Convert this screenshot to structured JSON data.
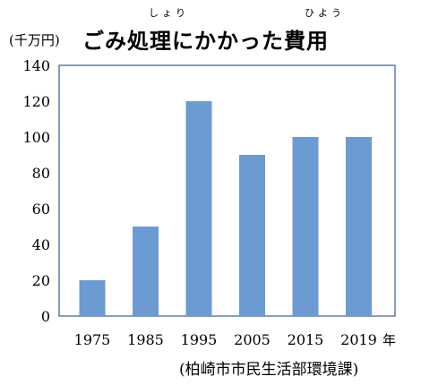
{
  "header": {
    "unit": "(千万円)",
    "title": "ごみ処理にかかった費用",
    "ruby_shori": "しょり",
    "ruby_hiyou": "ひよう"
  },
  "source": "(柏崎市市民生活部環境課)",
  "chart_data": {
    "type": "bar",
    "categories": [
      "1975",
      "1985",
      "1995",
      "2005",
      "2015",
      "2019"
    ],
    "values": [
      20,
      50,
      120,
      90,
      100,
      100
    ],
    "title": "ごみ処理にかかった費用",
    "xlabel": "年",
    "ylabel": "(千万円)",
    "ylim": [
      0,
      140
    ],
    "yticks": [
      0,
      20,
      40,
      60,
      80,
      100,
      120,
      140
    ],
    "bar_color": "#6b9bd2",
    "grid": false,
    "legend": "none"
  }
}
